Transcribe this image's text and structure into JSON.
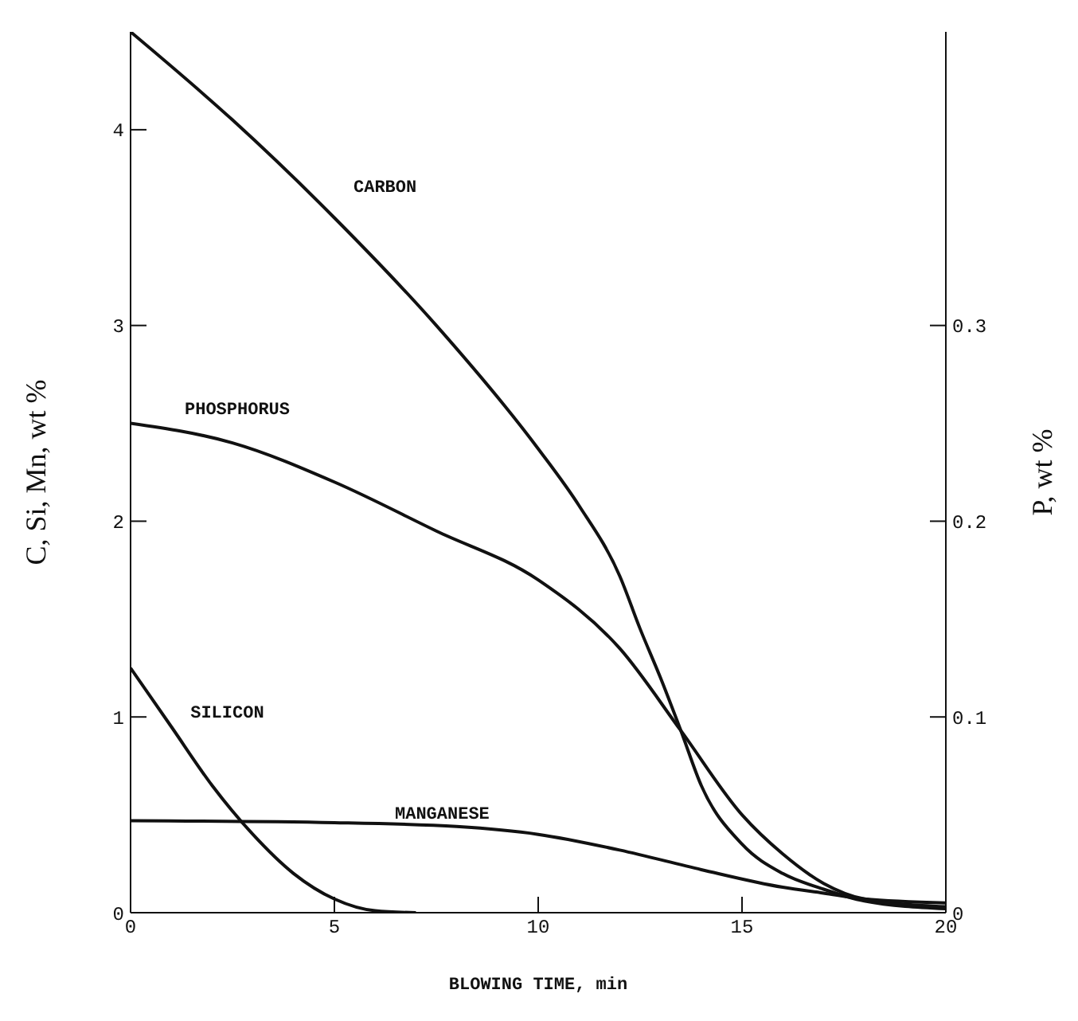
{
  "chart_data": {
    "type": "line",
    "xlabel": "BLOWING TIME, min",
    "ylabel": "C, Si, Mn,  wt %",
    "y2label": "P,  wt %",
    "xlim": [
      0,
      20
    ],
    "xticks": [
      0,
      5,
      10,
      15,
      20
    ],
    "ylim": [
      0,
      4.5
    ],
    "yticks": [
      0,
      1,
      2,
      3,
      4
    ],
    "y2lim": [
      0,
      0.45
    ],
    "y2ticks": [
      0,
      0.1,
      0.2,
      0.3
    ],
    "marker": "none",
    "line_style": "solid",
    "series": [
      {
        "name": "CARBON",
        "color": "#111111",
        "x": [
          0,
          2.5,
          5,
          7.5,
          10,
          11,
          12,
          12.5,
          13,
          13.5,
          14,
          15,
          16,
          17,
          18,
          20
        ],
        "values": [
          4.5,
          4.05,
          3.55,
          3.0,
          2.37,
          2.08,
          1.72,
          1.45,
          1.2,
          0.93,
          0.65,
          0.35,
          0.2,
          0.12,
          0.06,
          0.02
        ]
      },
      {
        "name": "PHOSPHORUS",
        "color": "#111111",
        "axis": "y2",
        "x": [
          0,
          2.5,
          5,
          7.5,
          10,
          12,
          13.5,
          15,
          16,
          17,
          18,
          20
        ],
        "values": [
          0.25,
          0.24,
          0.22,
          0.195,
          0.17,
          0.135,
          0.093,
          0.05,
          0.03,
          0.015,
          0.007,
          0.003
        ]
      },
      {
        "name": "SILICON",
        "color": "#111111",
        "x": [
          0,
          1,
          2,
          3,
          4,
          5,
          6,
          7
        ],
        "values": [
          1.25,
          0.95,
          0.65,
          0.4,
          0.2,
          0.07,
          0.01,
          0
        ]
      },
      {
        "name": "MANGANESE",
        "color": "#111111",
        "x": [
          0,
          5,
          8,
          10,
          12,
          14,
          16,
          17,
          18,
          20
        ],
        "values": [
          0.47,
          0.46,
          0.44,
          0.4,
          0.32,
          0.22,
          0.13,
          0.1,
          0.07,
          0.05
        ]
      }
    ]
  }
}
